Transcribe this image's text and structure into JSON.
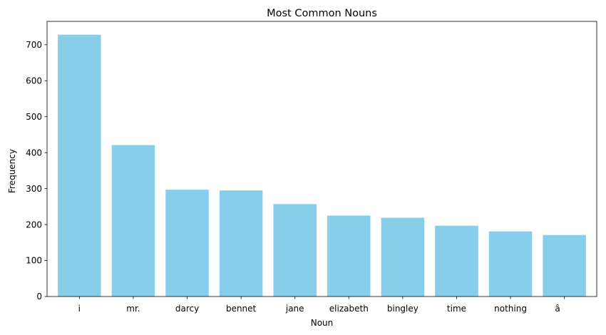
{
  "chart_data": {
    "type": "bar",
    "title": "Most Common Nouns",
    "xlabel": "Noun",
    "ylabel": "Frequency",
    "categories": [
      "i",
      "mr.",
      "darcy",
      "bennet",
      "jane",
      "elizabeth",
      "bingley",
      "time",
      "nothing",
      "â"
    ],
    "values": [
      728,
      421,
      297,
      295,
      257,
      225,
      219,
      197,
      181,
      171
    ],
    "ylim": [
      0,
      765
    ],
    "yticks": [
      0,
      100,
      200,
      300,
      400,
      500,
      600,
      700
    ],
    "bar_color": "#87ceeb",
    "grid": false,
    "legend": "none"
  }
}
